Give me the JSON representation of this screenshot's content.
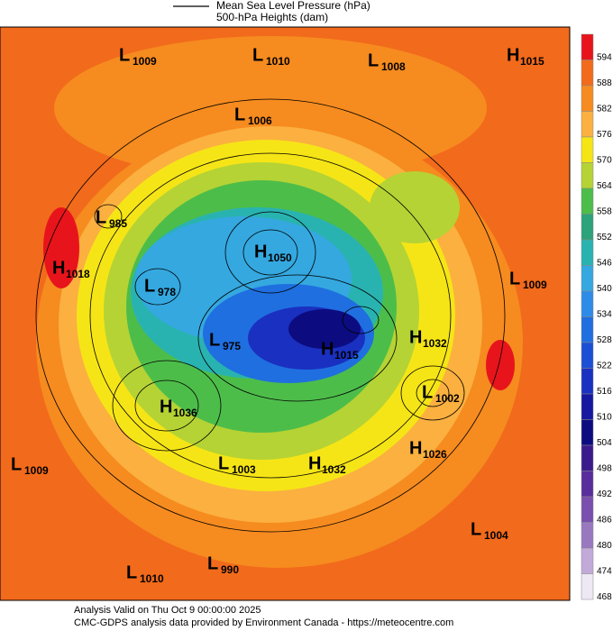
{
  "header": {
    "legend": [
      "Mean Sea Level Pressure (hPa)",
      "500-hPa Heights (dam)"
    ]
  },
  "colorbar": {
    "levels": [
      594,
      588,
      582,
      576,
      570,
      564,
      558,
      552,
      546,
      540,
      534,
      528,
      522,
      516,
      510,
      504,
      498,
      492,
      486,
      480,
      474,
      468
    ],
    "colors": [
      "#e8141c",
      "#f26a1b",
      "#f68b1f",
      "#fbb040",
      "#f6e516",
      "#b5d334",
      "#4dbd4a",
      "#2ca37a",
      "#29b3b0",
      "#35a8e0",
      "#2e8ce8",
      "#1f6fe0",
      "#1b4fd4",
      "#1a30c0",
      "#1618a0",
      "#0c0c80",
      "#3b1a8c",
      "#5a2d9c",
      "#7a4fae",
      "#9a78c0",
      "#c2aad8",
      "#eee8f4"
    ]
  },
  "centers": [
    {
      "type": "L",
      "pressure": 1009
    },
    {
      "type": "L",
      "pressure": 1010
    },
    {
      "type": "L",
      "pressure": 1008
    },
    {
      "type": "H",
      "pressure": 1015
    },
    {
      "type": "L",
      "pressure": 1006
    },
    {
      "type": "L",
      "pressure": 985
    },
    {
      "type": "H",
      "pressure": 1018
    },
    {
      "type": "H",
      "pressure": 1050
    },
    {
      "type": "L",
      "pressure": 978
    },
    {
      "type": "L",
      "pressure": 1009
    },
    {
      "type": "L",
      "pressure": 975
    },
    {
      "type": "H",
      "pressure": 1032
    },
    {
      "type": "H",
      "pressure": 1015
    },
    {
      "type": "H",
      "pressure": 1036
    },
    {
      "type": "L",
      "pressure": 1002
    },
    {
      "type": "H",
      "pressure": 1026
    },
    {
      "type": "L",
      "pressure": 1009
    },
    {
      "type": "L",
      "pressure": 1003
    },
    {
      "type": "H",
      "pressure": 1032
    },
    {
      "type": "L",
      "pressure": 1004
    },
    {
      "type": "L",
      "pressure": 1010
    },
    {
      "type": "L",
      "pressure": 990
    }
  ],
  "footer": [
    "Analysis Valid on Thu Oct  9 00:00:00 2025",
    "CMC-GDPS analysis data provided by Environment Canada - https://meteocentre.com"
  ]
}
